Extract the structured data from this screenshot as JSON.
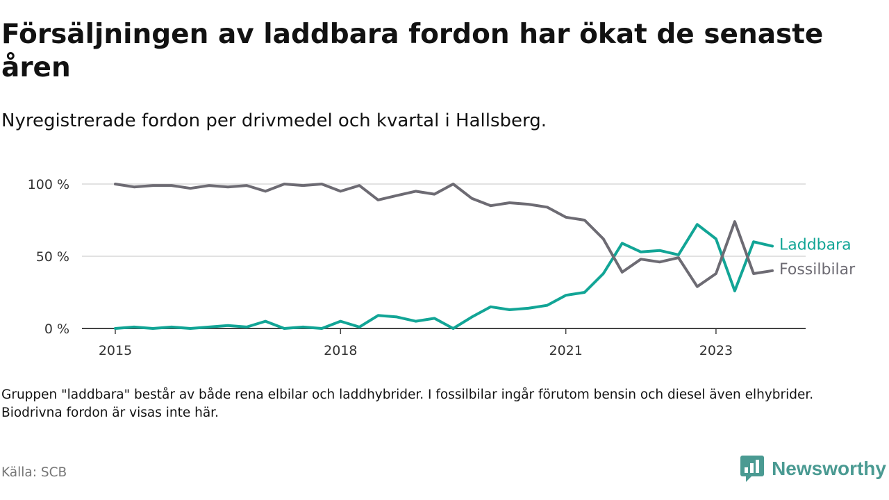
{
  "title": "Försäljningen av laddbara fordon har ökat de senaste åren",
  "subtitle": "Nyregistrerade fordon per drivmedel och kvartal i Hallsberg.",
  "note": "Gruppen \"laddbara\" består av både rena elbilar och laddhybrider. I fossilbilar ingår förutom bensin och diesel även elhybrider. Biodrivna fordon är visas inte här.",
  "source": "Källa: SCB",
  "brand": "Newsworthy",
  "colors": {
    "laddbara": "#12a596",
    "fossilbilar": "#6d6b73",
    "grid": "#d9d9d9",
    "axis": "#444444"
  },
  "chart_data": {
    "type": "line",
    "title": "Försäljningen av laddbara fordon har ökat de senaste åren",
    "xlabel": "",
    "ylabel": "",
    "x_range": [
      2015.0,
      2023.75
    ],
    "ylim": [
      0,
      100
    ],
    "y_ticks": [
      0,
      50,
      100
    ],
    "y_tick_labels": [
      "0 %",
      "50 %",
      "100 %"
    ],
    "x_ticks": [
      2015,
      2018,
      2021,
      2023
    ],
    "x_tick_labels": [
      "2015",
      "2018",
      "2021",
      "2023"
    ],
    "grid": true,
    "legend": "direct labels at line ends",
    "x": [
      2015.0,
      2015.25,
      2015.5,
      2015.75,
      2016.0,
      2016.25,
      2016.5,
      2016.75,
      2017.0,
      2017.25,
      2017.5,
      2017.75,
      2018.0,
      2018.25,
      2018.5,
      2018.75,
      2019.0,
      2019.25,
      2019.5,
      2019.75,
      2020.0,
      2020.25,
      2020.5,
      2020.75,
      2021.0,
      2021.25,
      2021.5,
      2021.75,
      2022.0,
      2022.25,
      2022.5,
      2022.75,
      2023.0,
      2023.25,
      2023.5,
      2023.75
    ],
    "series": [
      {
        "name": "Laddbara",
        "label": "Laddbara",
        "color": "#12a596",
        "values": [
          0,
          1,
          0,
          1,
          0,
          1,
          2,
          1,
          5,
          0,
          1,
          0,
          5,
          1,
          9,
          8,
          5,
          7,
          0,
          8,
          15,
          13,
          14,
          16,
          23,
          25,
          38,
          59,
          53,
          54,
          51,
          72,
          62,
          26,
          60,
          57
        ]
      },
      {
        "name": "Fossilbilar",
        "label": "Fossilbilar",
        "color": "#6d6b73",
        "values": [
          100,
          98,
          99,
          99,
          97,
          99,
          98,
          99,
          95,
          100,
          99,
          100,
          95,
          99,
          89,
          92,
          95,
          93,
          100,
          90,
          85,
          87,
          86,
          84,
          77,
          75,
          62,
          39,
          48,
          46,
          49,
          29,
          38,
          74,
          38,
          40
        ]
      }
    ]
  }
}
